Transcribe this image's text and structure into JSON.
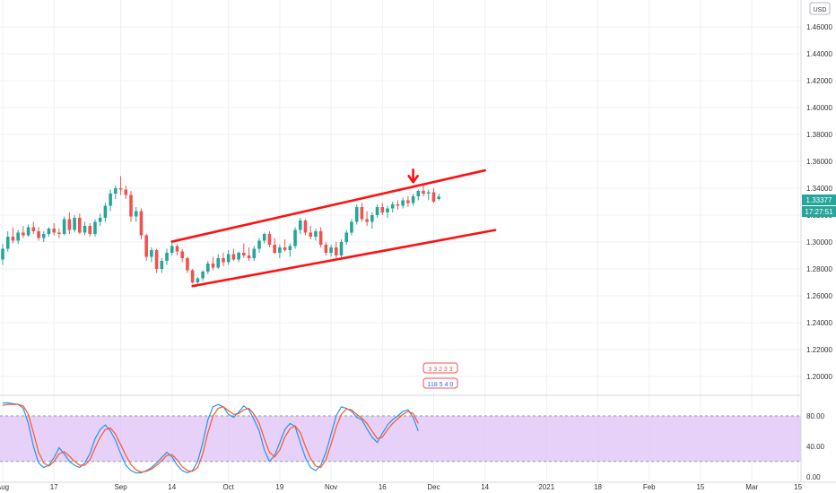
{
  "colors": {
    "up": "#26a69a",
    "down": "#ef5350",
    "channel": "#ff1111",
    "arrow": "#ff1111",
    "stoch_k": "#2196f3",
    "stoch_d": "#ff5722",
    "stoch_band": "#e1c6f7",
    "price_label": "#26a69a",
    "grid": "#eef0f3"
  },
  "currency": "USD",
  "last_price_label": "1.33377",
  "countdown_label": "17:27:51",
  "chart_data": [
    {
      "type": "candlestick",
      "y_ticks": [
        "1.46000",
        "1.44000",
        "1.42000",
        "1.40000",
        "1.38000",
        "1.36000",
        "1.34000",
        "1.32000",
        "1.30000",
        "1.28000",
        "1.26000",
        "1.24000",
        "1.22000",
        "1.20000"
      ],
      "ylim": [
        1.186,
        1.48
      ],
      "x_labels": [
        "Aug",
        "17",
        "Sep",
        "14",
        "Oct",
        "19",
        "Nov",
        "16",
        "Dec",
        "14",
        "2021",
        "18",
        "Feb",
        "15",
        "Mar",
        "15"
      ],
      "x_label_index": [
        0,
        10,
        23,
        33,
        44,
        54,
        64,
        74,
        84,
        94,
        106,
        116,
        126,
        136,
        146,
        155
      ],
      "candles": [
        [
          1.287,
          1.2985,
          1.283,
          1.295
        ],
        [
          1.295,
          1.308,
          1.293,
          1.304
        ],
        [
          1.304,
          1.311,
          1.299,
          1.301
        ],
        [
          1.301,
          1.309,
          1.2985,
          1.307
        ],
        [
          1.307,
          1.312,
          1.303,
          1.305
        ],
        [
          1.305,
          1.313,
          1.304,
          1.311
        ],
        [
          1.311,
          1.315,
          1.306,
          1.308
        ],
        [
          1.308,
          1.311,
          1.301,
          1.303
        ],
        [
          1.303,
          1.308,
          1.3,
          1.306
        ],
        [
          1.306,
          1.311,
          1.304,
          1.31
        ],
        [
          1.31,
          1.314,
          1.305,
          1.307
        ],
        [
          1.307,
          1.31,
          1.303,
          1.306
        ],
        [
          1.306,
          1.319,
          1.305,
          1.317
        ],
        [
          1.317,
          1.322,
          1.306,
          1.309
        ],
        [
          1.309,
          1.32,
          1.307,
          1.318
        ],
        [
          1.318,
          1.321,
          1.306,
          1.307
        ],
        [
          1.307,
          1.315,
          1.305,
          1.312
        ],
        [
          1.312,
          1.314,
          1.304,
          1.306
        ],
        [
          1.306,
          1.317,
          1.304,
          1.315
        ],
        [
          1.315,
          1.321,
          1.312,
          1.318
        ],
        [
          1.318,
          1.329,
          1.315,
          1.327
        ],
        [
          1.327,
          1.339,
          1.323,
          1.336
        ],
        [
          1.336,
          1.342,
          1.332,
          1.34
        ],
        [
          1.34,
          1.349,
          1.335,
          1.339
        ],
        [
          1.339,
          1.342,
          1.332,
          1.335
        ],
        [
          1.335,
          1.338,
          1.315,
          1.319
        ],
        [
          1.319,
          1.326,
          1.315,
          1.323
        ],
        [
          1.323,
          1.325,
          1.302,
          1.305
        ],
        [
          1.305,
          1.306,
          1.286,
          1.289
        ],
        [
          1.289,
          1.296,
          1.285,
          1.294
        ],
        [
          1.294,
          1.295,
          1.277,
          1.28
        ],
        [
          1.28,
          1.288,
          1.277,
          1.286
        ],
        [
          1.286,
          1.295,
          1.283,
          1.292
        ],
        [
          1.292,
          1.3,
          1.29,
          1.297
        ],
        [
          1.297,
          1.2985,
          1.29,
          1.293
        ],
        [
          1.293,
          1.295,
          1.285,
          1.288
        ],
        [
          1.288,
          1.289,
          1.277,
          1.279
        ],
        [
          1.279,
          1.28,
          1.269,
          1.27
        ],
        [
          1.27,
          1.274,
          1.268,
          1.273
        ],
        [
          1.273,
          1.279,
          1.271,
          1.278
        ],
        [
          1.278,
          1.286,
          1.276,
          1.284
        ],
        [
          1.284,
          1.289,
          1.279,
          1.281
        ],
        [
          1.281,
          1.291,
          1.28,
          1.288
        ],
        [
          1.288,
          1.292,
          1.282,
          1.285
        ],
        [
          1.285,
          1.294,
          1.283,
          1.291
        ],
        [
          1.291,
          1.295,
          1.286,
          1.287
        ],
        [
          1.287,
          1.293,
          1.285,
          1.292
        ],
        [
          1.292,
          1.299,
          1.288,
          1.29
        ],
        [
          1.29,
          1.296,
          1.286,
          1.288
        ],
        [
          1.288,
          1.297,
          1.286,
          1.295
        ],
        [
          1.295,
          1.303,
          1.292,
          1.301
        ],
        [
          1.301,
          1.307,
          1.299,
          1.306
        ],
        [
          1.306,
          1.308,
          1.296,
          1.298
        ],
        [
          1.298,
          1.303,
          1.291,
          1.292
        ],
        [
          1.292,
          1.298,
          1.288,
          1.296
        ],
        [
          1.296,
          1.302,
          1.293,
          1.294
        ],
        [
          1.294,
          1.299,
          1.289,
          1.297
        ],
        [
          1.297,
          1.311,
          1.295,
          1.309
        ],
        [
          1.309,
          1.318,
          1.306,
          1.316
        ],
        [
          1.316,
          1.317,
          1.305,
          1.307
        ],
        [
          1.307,
          1.312,
          1.302,
          1.304
        ],
        [
          1.304,
          1.31,
          1.301,
          1.308
        ],
        [
          1.308,
          1.311,
          1.296,
          1.298
        ],
        [
          1.298,
          1.3,
          1.29,
          1.292
        ],
        [
          1.292,
          1.298,
          1.289,
          1.296
        ],
        [
          1.296,
          1.3,
          1.288,
          1.29
        ],
        [
          1.29,
          1.302,
          1.288,
          1.3
        ],
        [
          1.3,
          1.309,
          1.298,
          1.307
        ],
        [
          1.307,
          1.317,
          1.305,
          1.315
        ],
        [
          1.315,
          1.328,
          1.313,
          1.326
        ],
        [
          1.326,
          1.329,
          1.315,
          1.317
        ],
        [
          1.317,
          1.323,
          1.312,
          1.315
        ],
        [
          1.315,
          1.322,
          1.31,
          1.32
        ],
        [
          1.32,
          1.328,
          1.318,
          1.326
        ],
        [
          1.326,
          1.329,
          1.32,
          1.322
        ],
        [
          1.322,
          1.327,
          1.318,
          1.325
        ],
        [
          1.325,
          1.33,
          1.322,
          1.328
        ],
        [
          1.328,
          1.331,
          1.324,
          1.327
        ],
        [
          1.327,
          1.333,
          1.325,
          1.331
        ],
        [
          1.331,
          1.334,
          1.326,
          1.329
        ],
        [
          1.329,
          1.336,
          1.327,
          1.334
        ],
        [
          1.334,
          1.339,
          1.331,
          1.338
        ],
        [
          1.338,
          1.342,
          1.334,
          1.336
        ],
        [
          1.336,
          1.339,
          1.331,
          1.337
        ],
        [
          1.337,
          1.34,
          1.329,
          1.33
        ],
        [
          1.332,
          1.336,
          1.331,
          1.3338
        ]
      ],
      "annotations": {
        "channel_upper": [
          [
            33,
            1.3003
          ],
          [
            94,
            1.3533
          ]
        ],
        "channel_lower": [
          [
            37,
            1.2672
          ],
          [
            96,
            1.3089
          ]
        ],
        "arrow": [
          80,
          1.3445
        ]
      }
    },
    {
      "type": "line",
      "indicator": "stochastic",
      "y_ticks": [
        "80.00",
        "40.00",
        "0.00"
      ],
      "ylim": [
        -5,
        100
      ],
      "band": [
        20,
        80
      ],
      "series": [
        {
          "color": "#2196f3",
          "values": [
            97,
            97,
            96,
            95,
            90,
            70,
            40,
            18,
            12,
            15,
            25,
            38,
            30,
            20,
            15,
            12,
            18,
            30,
            50,
            62,
            68,
            60,
            48,
            30,
            15,
            8,
            5,
            5,
            8,
            12,
            18,
            25,
            32,
            26,
            15,
            8,
            5,
            8,
            20,
            45,
            75,
            92,
            95,
            92,
            82,
            78,
            85,
            93,
            88,
            75,
            60,
            35,
            20,
            28,
            45,
            62,
            70,
            66,
            45,
            25,
            12,
            8,
            15,
            32,
            56,
            80,
            92,
            90,
            86,
            78,
            75,
            63,
            52,
            45,
            57,
            68,
            75,
            80,
            86,
            88,
            78,
            60
          ]
        },
        {
          "color": "#ff5722",
          "values": [
            94,
            95,
            95,
            95,
            93,
            82,
            58,
            32,
            18,
            14,
            20,
            30,
            33,
            27,
            20,
            15,
            15,
            22,
            38,
            52,
            62,
            64,
            56,
            42,
            28,
            16,
            9,
            6,
            7,
            10,
            15,
            21,
            28,
            29,
            22,
            13,
            8,
            7,
            12,
            30,
            58,
            80,
            90,
            92,
            87,
            82,
            83,
            88,
            90,
            82,
            70,
            50,
            32,
            26,
            35,
            52,
            63,
            67,
            58,
            40,
            24,
            14,
            12,
            22,
            43,
            65,
            82,
            89,
            88,
            82,
            77,
            70,
            60,
            50,
            52,
            62,
            70,
            76,
            82,
            86,
            83,
            70
          ]
        }
      ]
    }
  ],
  "overlay_badge": {
    "top_row": "3 3 2 3 3",
    "bottom_row": "118 5 4 0"
  }
}
